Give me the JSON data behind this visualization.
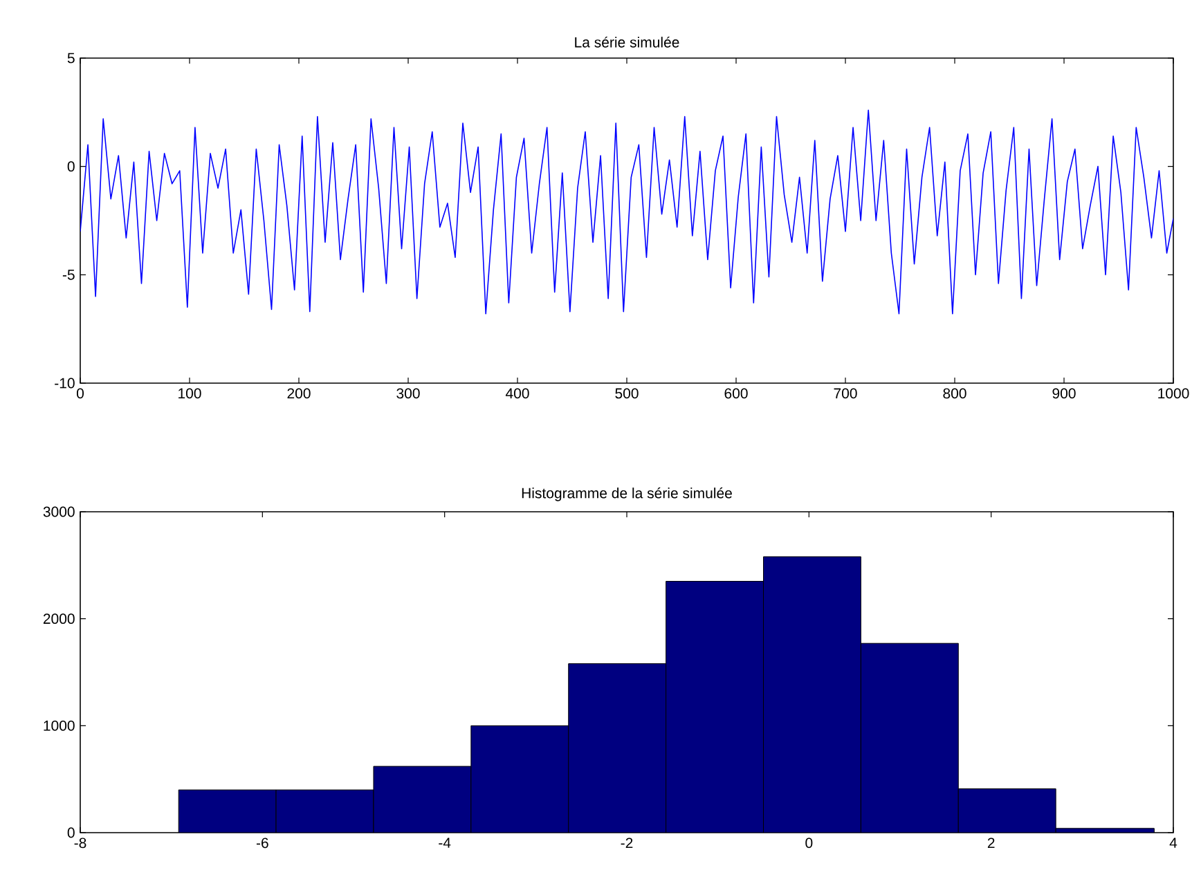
{
  "chart_data": [
    {
      "type": "line",
      "title": "La série simulée",
      "color": "#0000ff",
      "xlim": [
        0,
        1000
      ],
      "ylim": [
        -10,
        5
      ],
      "xticks": [
        0,
        100,
        200,
        300,
        400,
        500,
        600,
        700,
        800,
        900,
        1000
      ],
      "yticks": [
        -10,
        -5,
        0,
        5
      ],
      "x": [
        0,
        7,
        14,
        21,
        28,
        35,
        42,
        49,
        56,
        63,
        70,
        77,
        84,
        91,
        98,
        105,
        112,
        119,
        126,
        133,
        140,
        147,
        154,
        161,
        168,
        175,
        182,
        189,
        196,
        203,
        210,
        217,
        224,
        231,
        238,
        245,
        252,
        259,
        266,
        273,
        280,
        287,
        294,
        301,
        308,
        315,
        322,
        329,
        336,
        343,
        350,
        357,
        364,
        371,
        378,
        385,
        392,
        399,
        406,
        413,
        420,
        427,
        434,
        441,
        448,
        455,
        462,
        469,
        476,
        483,
        490,
        497,
        504,
        511,
        518,
        525,
        532,
        539,
        546,
        553,
        560,
        567,
        574,
        581,
        588,
        595,
        602,
        609,
        616,
        623,
        630,
        637,
        644,
        651,
        658,
        665,
        672,
        679,
        686,
        693,
        700,
        707,
        714,
        721,
        728,
        735,
        742,
        749,
        756,
        763,
        770,
        777,
        784,
        791,
        798,
        805,
        812,
        819,
        826,
        833,
        840,
        847,
        854,
        861,
        868,
        875,
        882,
        889,
        896,
        903,
        910,
        917,
        924,
        931,
        938,
        945,
        952,
        959,
        966,
        973,
        980,
        987,
        994,
        1000
      ],
      "values": [
        -3,
        1,
        -6,
        2.2,
        -1.5,
        0.5,
        -3.3,
        0.2,
        -5.4,
        0.7,
        -2.5,
        0.6,
        -0.8,
        -0.2,
        -6.5,
        1.8,
        -4,
        0.6,
        -1,
        0.8,
        -4,
        -2,
        -5.9,
        0.8,
        -2.5,
        -6.6,
        1,
        -1.8,
        -5.7,
        1.4,
        -6.7,
        2.3,
        -3.5,
        1.1,
        -4.3,
        -1.5,
        1,
        -5.8,
        2.2,
        -1,
        -5.4,
        1.8,
        -3.8,
        0.9,
        -6.1,
        -0.8,
        1.6,
        -2.8,
        -1.7,
        -4.2,
        2,
        -1.2,
        0.9,
        -6.8,
        -2,
        1.5,
        -6.3,
        -0.5,
        1.3,
        -4,
        -0.8,
        1.8,
        -5.8,
        -0.3,
        -6.7,
        -1,
        1.6,
        -3.5,
        0.5,
        -6.1,
        2,
        -6.7,
        -0.5,
        1,
        -4.2,
        1.8,
        -2.2,
        0.3,
        -2.8,
        2.3,
        -3.2,
        0.7,
        -4.3,
        -0.2,
        1.4,
        -5.6,
        -1.4,
        1.5,
        -6.3,
        0.9,
        -5.1,
        2.3,
        -1.3,
        -3.5,
        -0.5,
        -4,
        1.2,
        -5.3,
        -1.5,
        0.5,
        -3,
        1.8,
        -2.5,
        2.6,
        -2.5,
        1.2,
        -4,
        -6.8,
        0.8,
        -4.5,
        -0.5,
        1.8,
        -3.2,
        0.2,
        -6.8,
        -0.2,
        1.5,
        -5,
        -0.3,
        1.6,
        -5.4,
        -1.1,
        1.8,
        -6.1,
        0.8,
        -5.5,
        -1.5,
        2.2,
        -4.3,
        -0.7,
        0.8,
        -3.8,
        -1.8,
        0,
        -5,
        1.4,
        -1.2,
        -5.7,
        1.8,
        -0.5,
        -3.3,
        -0.2,
        -4,
        -2.4
      ]
    },
    {
      "type": "histogram",
      "title": "Histogramme de la série simulée",
      "color": "#000080",
      "xlim": [
        -8,
        4
      ],
      "ylim": [
        0,
        3000
      ],
      "xticks": [
        -8,
        -6,
        -4,
        -2,
        0,
        2,
        4
      ],
      "yticks": [
        0,
        1000,
        2000,
        3000
      ],
      "bins": [
        -6.92,
        -5.85,
        -4.78,
        -3.71,
        -2.64,
        -1.57,
        -0.5,
        0.57,
        1.64,
        2.71,
        3.79
      ],
      "values": [
        400,
        400,
        620,
        1000,
        1580,
        2350,
        2580,
        1770,
        410,
        40
      ]
    }
  ]
}
